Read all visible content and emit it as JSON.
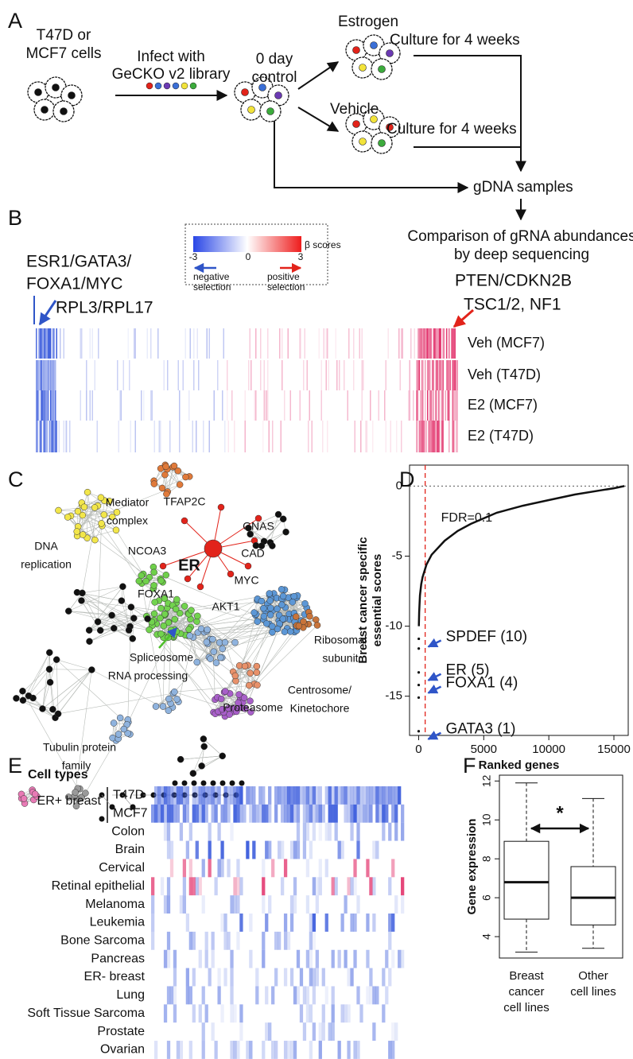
{
  "panel_labels": [
    "A",
    "B",
    "C",
    "D",
    "E",
    "F"
  ],
  "panel_a": {
    "start": [
      "T47D or",
      "MCF7 cells"
    ],
    "infect": [
      "Infect with",
      "GeCKO v2 library"
    ],
    "control": [
      "0 day",
      "control"
    ],
    "estrogen": "Estrogen",
    "culture_estrogen": "Culture for 4 weeks",
    "vehicle": "Vehicle",
    "culture_vehicle": "Culture for 4 weeks",
    "gdna": "gDNA samples",
    "comparison": [
      "Comparison of gRNA abundances",
      "by deep sequencing"
    ]
  },
  "panel_b": {
    "legend_title": "β scores",
    "legend_ticks": [
      -3,
      0,
      3
    ],
    "negative": [
      "negative",
      "selection"
    ],
    "positive": [
      "positive",
      "selection"
    ],
    "left_genes": [
      "ESR1/GATA3/",
      "FOXA1/MYC",
      "RPL3/RPL17"
    ],
    "right_genes": [
      "PTEN/CDKN2B",
      "TSC1/2, NF1"
    ],
    "rows": [
      "Veh (MCF7)",
      "Veh (T47D)",
      "E2 (MCF7)",
      "E2 (T47D)"
    ]
  },
  "panel_c": {
    "labels": [
      {
        "lines": [
          "Mediator",
          "complex"
        ],
        "color": "#d9622b"
      },
      {
        "lines": [
          "DNA",
          "replication"
        ],
        "color": "#e3bf1c"
      },
      {
        "lines": [
          "TFAP2C"
        ],
        "color": "#e2231a"
      },
      {
        "lines": [
          "GNAS"
        ],
        "color": "#e2231a"
      },
      {
        "lines": [
          "NCOA3"
        ],
        "color": "#e2231a"
      },
      {
        "lines": [
          "CAD"
        ],
        "color": "#e2231a"
      },
      {
        "lines": [
          "ER"
        ],
        "color": "#e2231a"
      },
      {
        "lines": [
          "MYC"
        ],
        "color": "#e2231a"
      },
      {
        "lines": [
          "FOXA1"
        ],
        "color": "#e2231a"
      },
      {
        "lines": [
          "AKT1"
        ],
        "color": "#e2231a"
      },
      {
        "lines": [
          "Ribosomal",
          "subunit"
        ],
        "color": "#3a6fb8"
      },
      {
        "lines": [
          "Spliceosome",
          "RNA processing"
        ],
        "color": "#4fbf2c"
      },
      {
        "lines": [
          "Centrosome/",
          "Kinetochore"
        ],
        "color": "#d9622b"
      },
      {
        "lines": [
          "Proteasome"
        ],
        "color": "#8b3fb3"
      },
      {
        "lines": [
          "Tubulin protein",
          "family"
        ],
        "color": "#3a6fb8"
      }
    ]
  },
  "chart_data": [
    {
      "type": "line",
      "y_label": [
        "Breast cancer specific",
        "essential scores"
      ],
      "x_label": "Ranked genes",
      "xlim": [
        -700,
        16100
      ],
      "ylim": [
        -17.8,
        1.5
      ],
      "xticks": [
        0,
        5000,
        10000,
        15000
      ],
      "yticks": [
        0,
        -5,
        -10,
        -15
      ],
      "threshold_x": 500,
      "threshold_label": "FDR=0.1",
      "threshold_color": "#e2231a",
      "series": [
        {
          "color": "#111111",
          "x": [
            15,
            40,
            100,
            200,
            300,
            600,
            1000,
            2000,
            3000,
            4000,
            6000,
            8000,
            10000,
            12000,
            14000,
            15000,
            15800
          ],
          "values": [
            -10,
            -9,
            -7.8,
            -7,
            -6.5,
            -5.6,
            -4.9,
            -3.9,
            -3.2,
            -2.7,
            -1.9,
            -1.4,
            -1,
            -0.6,
            -0.3,
            -0.15,
            0
          ]
        },
        {
          "color": "#111111",
          "mode": "points",
          "x": [
            1,
            2,
            4,
            5,
            8,
            10
          ],
          "values": [
            -17.5,
            -15.1,
            -14.2,
            -13.3,
            -11.6,
            -10.9
          ],
          "point_labels": [
            "GATA3 (1)",
            null,
            "FOXA1 (4)",
            "ER (5)",
            null,
            "SPDEF (10)"
          ],
          "label_color": "#2f55c8"
        }
      ]
    },
    {
      "type": "box",
      "y_label": "Gene expression",
      "categories": [
        [
          "Breast",
          "cancer",
          "cell lines"
        ],
        [
          "Other",
          "cell lines"
        ]
      ],
      "ylim": [
        2.9,
        12.3
      ],
      "yticks": [
        4,
        6,
        8,
        10,
        12
      ],
      "whisker_low": [
        3.2,
        3.4
      ],
      "q1": [
        4.9,
        4.6
      ],
      "median": [
        6.8,
        6.0
      ],
      "q3": [
        8.9,
        7.6
      ],
      "whisker_high": [
        11.9,
        11.1
      ],
      "significance": "*"
    }
  ],
  "panel_e": {
    "title": "Cell types",
    "group": "ER+ breast",
    "rows": [
      "T47D",
      "MCF7",
      "Colon",
      "Brain",
      "Cervical",
      "Retinal epithelial",
      "Melanoma",
      "Leukemia",
      "Bone Sarcoma",
      "Pancreas",
      "ER- breast",
      "Lung",
      "Soft Tissue Sarcoma",
      "Prostate",
      "Ovarian"
    ]
  }
}
